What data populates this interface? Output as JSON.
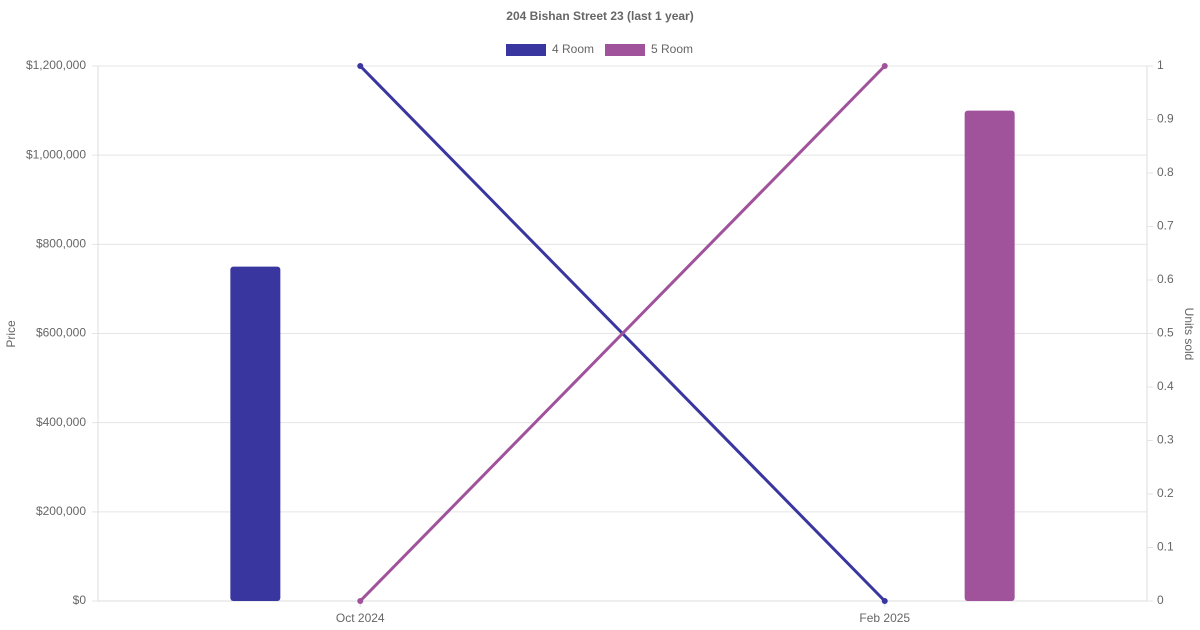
{
  "chart_data": {
    "type": "bar-line",
    "title": "204 Bishan Street 23 (last 1 year)",
    "y_label": "Price",
    "y2_label": "Units sold",
    "categories": [
      "Oct 2024",
      "Feb 2025"
    ],
    "series": [
      {
        "name": "4 Room",
        "color": "#3a36a0",
        "values": [
          750000,
          null
        ],
        "units_sold": [
          1,
          0
        ],
        "units_axis": "y2"
      },
      {
        "name": "5 Room",
        "color": "#a0529a",
        "values": [
          null,
          1100000
        ],
        "units_sold": [
          0,
          1
        ],
        "units_axis": "y2"
      }
    ],
    "ylim": [
      0,
      1200000
    ],
    "yticks": [
      {
        "value": 0,
        "label": "$0"
      },
      {
        "value": 200000,
        "label": "$200,000"
      },
      {
        "value": 400000,
        "label": "$400,000"
      },
      {
        "value": 600000,
        "label": "$600,000"
      },
      {
        "value": 800000,
        "label": "$800,000"
      },
      {
        "value": 1000000,
        "label": "$1,000,000"
      },
      {
        "value": 1200000,
        "label": "$1,200,000"
      }
    ],
    "y2lim": [
      0,
      1
    ],
    "y2ticks": [
      0,
      0.1,
      0.2,
      0.3,
      0.4,
      0.5,
      0.6,
      0.7,
      0.8,
      0.9,
      1
    ],
    "grid": true,
    "legend": "top"
  }
}
